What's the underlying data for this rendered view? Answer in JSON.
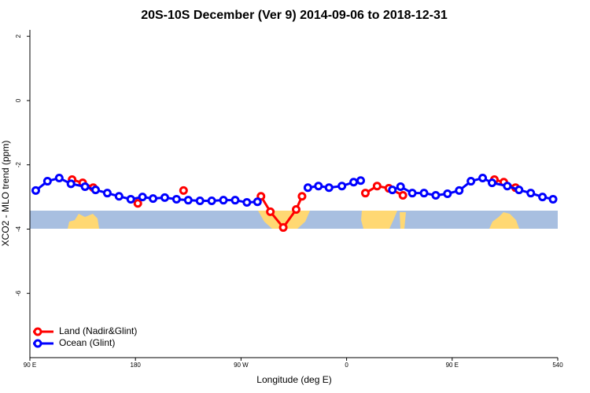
{
  "chart_data": {
    "type": "line",
    "title": "20S-10S December (Ver 9)   2014-09-06 to 2018-12-31",
    "x_label": "Longitude (deg E)",
    "y_label": "XCO2 - MLO trend (ppm)",
    "xlim": [
      90,
      540
    ],
    "ylim": [
      -8,
      2.2
    ],
    "xticks": [
      {
        "value": 90,
        "label": "90 E"
      },
      180,
      {
        "value": 270,
        "label": "90 W"
      },
      {
        "value": 360,
        "label": "0"
      },
      {
        "value": 450,
        "label": "90 E"
      },
      540
    ],
    "yticks": [
      2,
      0,
      -2,
      -4,
      -6
    ],
    "legend": "bottom-left",
    "series": [
      {
        "name": "Land (Nadir&Glint)",
        "color": "#ff0000",
        "x": [
          126,
          135,
          144,
          160,
          182,
          200,
          221,
          250,
          287,
          295,
          306,
          317,
          322,
          350,
          376,
          386,
          396,
          408,
          450,
          486,
          494,
          504
        ],
        "values": [
          -2.46,
          -2.56,
          -2.71,
          null,
          -3.2,
          null,
          -2.8,
          null,
          -2.98,
          -3.46,
          -3.95,
          -3.39,
          -2.98,
          null,
          -2.88,
          -2.66,
          -2.73,
          -2.95,
          null,
          -2.46,
          -2.54,
          -2.71
        ]
      },
      {
        "name": "Ocean (Glint)",
        "color": "#0000ff",
        "x": [
          95,
          105,
          115,
          125,
          137,
          146,
          156,
          166,
          176,
          186,
          195,
          205,
          215,
          225,
          235,
          245,
          255,
          265,
          275,
          284,
          305,
          327,
          336,
          345,
          356,
          366,
          372,
          385,
          399,
          406,
          416,
          426,
          436,
          446,
          456,
          466,
          476,
          484,
          497,
          507,
          517,
          527,
          536
        ],
        "values": [
          -2.8,
          -2.51,
          -2.41,
          -2.59,
          -2.68,
          -2.78,
          -2.88,
          -2.98,
          -3.07,
          -3.0,
          -3.05,
          -3.02,
          -3.07,
          -3.1,
          -3.12,
          -3.12,
          -3.1,
          -3.1,
          -3.17,
          -3.15,
          null,
          -2.71,
          -2.66,
          -2.71,
          -2.66,
          -2.54,
          -2.49,
          null,
          -2.78,
          -2.68,
          -2.88,
          -2.88,
          -2.95,
          -2.9,
          -2.8,
          -2.51,
          -2.41,
          -2.56,
          -2.66,
          -2.78,
          -2.88,
          -3.0,
          -3.07
        ]
      }
    ]
  }
}
